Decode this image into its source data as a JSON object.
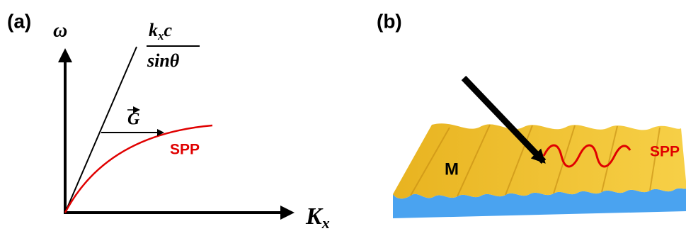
{
  "panel_a": {
    "label": "(a)",
    "y_axis": "ω",
    "line_label": {
      "numerator": [
        "k",
        "x",
        "c"
      ],
      "denominator": "sinθ"
    },
    "vector": "G",
    "curve_label": "SPP",
    "x_axis": [
      "K",
      "x"
    ]
  },
  "panel_b": {
    "label": "(b)",
    "metal": "M",
    "wave_label": "SPP"
  }
}
